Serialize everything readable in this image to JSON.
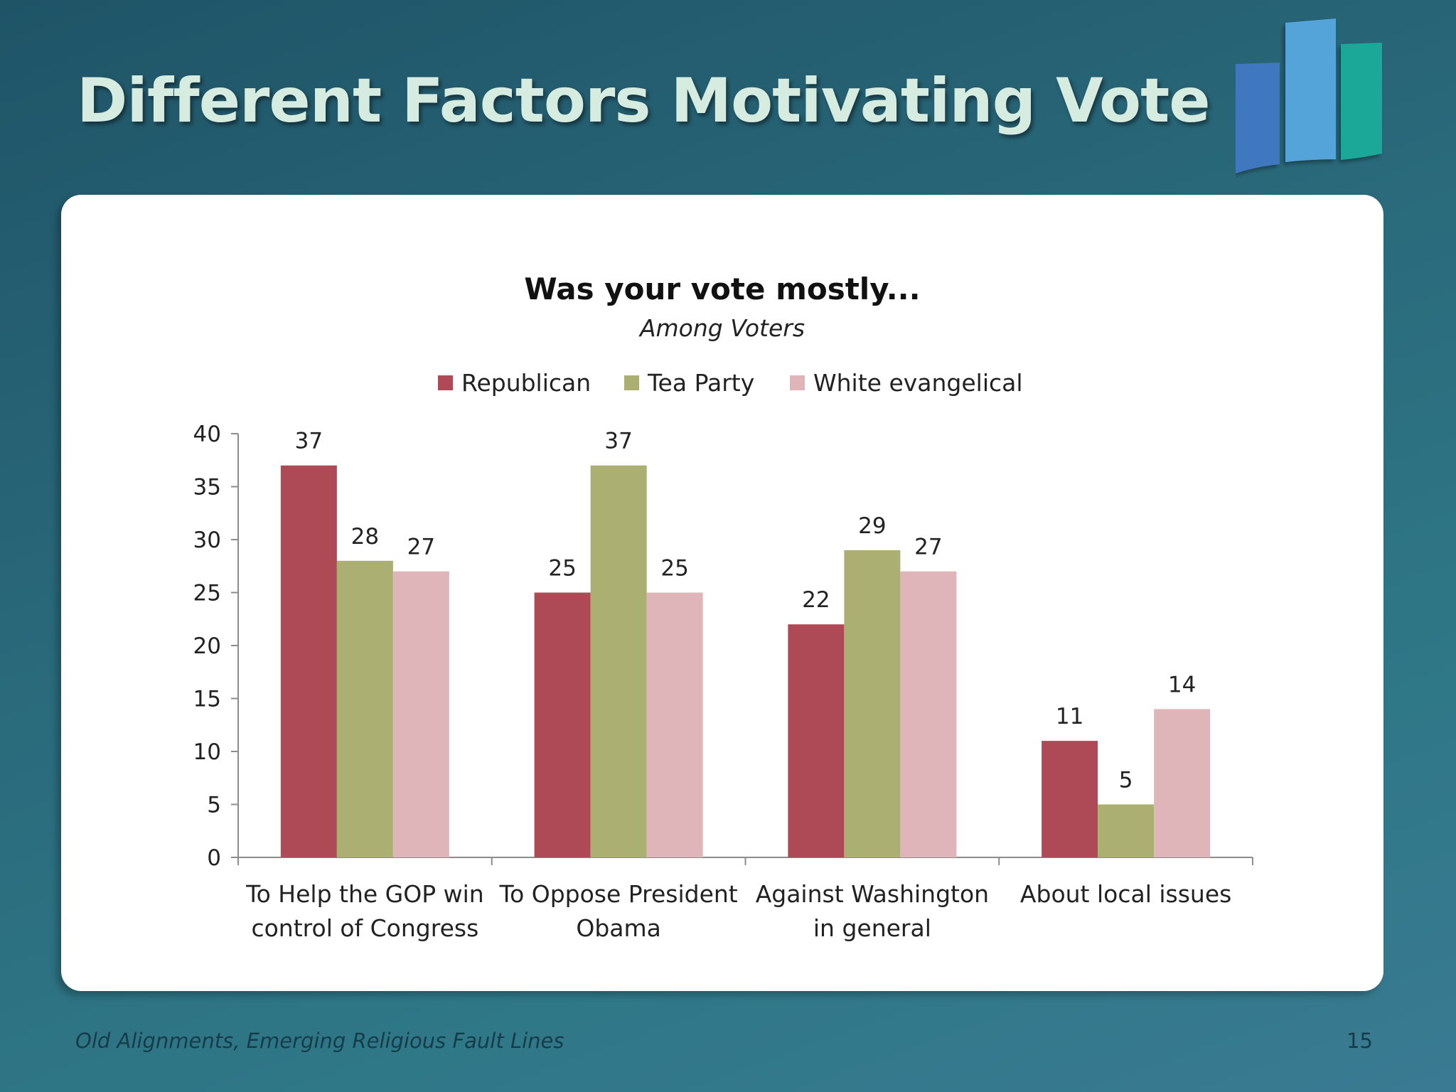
{
  "slide": {
    "title": "Different Factors Motivating Vote",
    "footer": "Old Alignments, Emerging Religious Fault Lines",
    "page_number": "15"
  },
  "colors": {
    "background": "#2a6b7c",
    "title": "#d7ece0",
    "logo": [
      "#3f78bf",
      "#55a4d9",
      "#1fa898"
    ]
  },
  "chart_data": {
    "type": "bar",
    "title": "Was your vote mostly...",
    "subtitle": "Among Voters",
    "categories": [
      [
        "To Help the GOP win",
        "control of Congress"
      ],
      [
        "To Oppose President",
        "Obama"
      ],
      [
        "Against Washington",
        "in general"
      ],
      [
        "About local issues"
      ]
    ],
    "series": [
      {
        "name": "Republican",
        "color": "#ae4a55",
        "values": [
          37,
          25,
          22,
          11
        ]
      },
      {
        "name": "Tea Party",
        "color": "#abaf71",
        "values": [
          28,
          37,
          29,
          5
        ]
      },
      {
        "name": "White evangelical",
        "color": "#e0b5ba",
        "values": [
          27,
          25,
          27,
          14
        ]
      }
    ],
    "ylim": [
      0,
      40
    ],
    "yticks": [
      0,
      5,
      10,
      15,
      20,
      25,
      30,
      35,
      40
    ],
    "legend": "top",
    "grid": false,
    "data_labels": true
  }
}
